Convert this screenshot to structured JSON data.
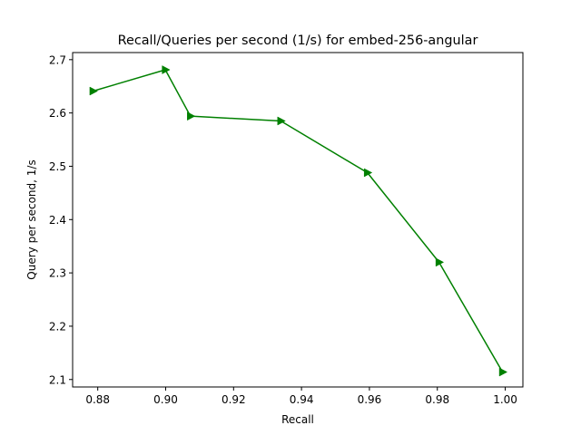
{
  "chart_data": {
    "type": "line",
    "title": "Recall/Queries per second (1/s) for embed-256-angular",
    "xlabel": "Recall",
    "ylabel": "Query per second, 1/s",
    "xlim": [
      0.8726,
      1.0052
    ],
    "ylim": [
      2.086,
      2.7133
    ],
    "x_ticks": [
      0.88,
      0.9,
      0.92,
      0.94,
      0.96,
      0.98,
      1.0
    ],
    "x_tick_labels": [
      "0.88",
      "0.90",
      "0.92",
      "0.94",
      "0.96",
      "0.98",
      "1.00"
    ],
    "y_ticks": [
      2.1,
      2.2,
      2.3,
      2.4,
      2.5,
      2.6,
      2.7
    ],
    "y_tick_labels": [
      "2.1",
      "2.2",
      "2.3",
      "2.4",
      "2.5",
      "2.6",
      "2.7"
    ],
    "grid": false,
    "series": [
      {
        "color": "#008000",
        "marker": "triangle-right",
        "x": [
          0.8786,
          0.8999,
          0.9073,
          0.9339,
          0.9594,
          0.9805,
          0.9992
        ],
        "y": [
          2.641,
          2.681,
          2.594,
          2.585,
          2.488,
          2.32,
          2.114
        ]
      }
    ]
  }
}
